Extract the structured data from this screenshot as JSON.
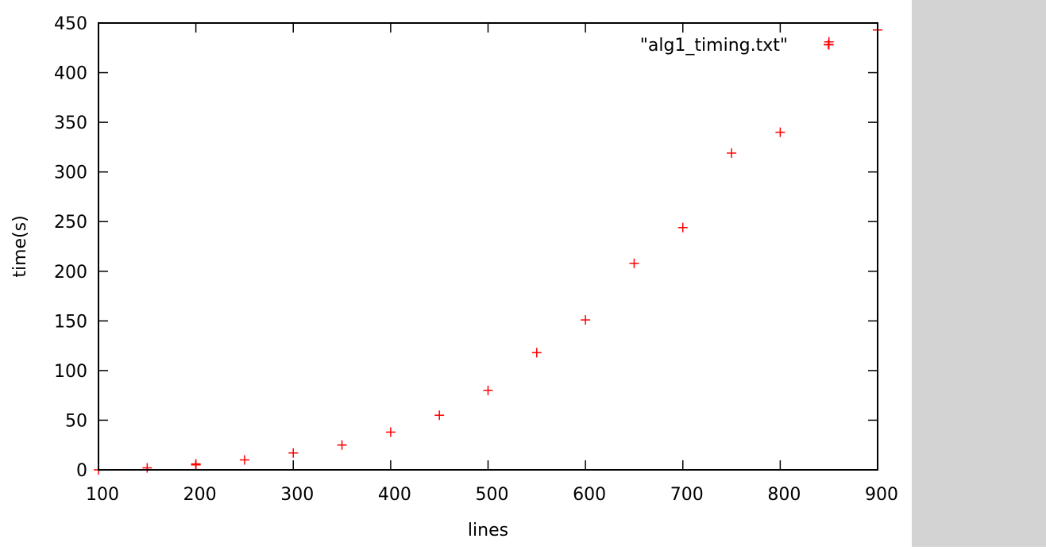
{
  "chart_data": {
    "type": "scatter",
    "xlabel": "lines",
    "ylabel": "time(s)",
    "xlim": [
      100,
      900
    ],
    "ylim": [
      0,
      450
    ],
    "xticks": [
      100,
      200,
      300,
      400,
      500,
      600,
      700,
      800,
      900
    ],
    "yticks": [
      0,
      50,
      100,
      150,
      200,
      250,
      300,
      350,
      400,
      450
    ],
    "grid": false,
    "legend_position": "top-right",
    "series": [
      {
        "name": "\"alg1_timing.txt\"",
        "color": "#ff0000",
        "marker": "plus",
        "x": [
          100,
          150,
          200,
          200,
          250,
          300,
          350,
          400,
          450,
          500,
          550,
          600,
          650,
          700,
          750,
          800,
          850,
          850,
          900
        ],
        "y": [
          0,
          2,
          5,
          6,
          10,
          17,
          25,
          38,
          55,
          80,
          118,
          151,
          208,
          244,
          319,
          340,
          428,
          431,
          443
        ]
      }
    ]
  },
  "side_panel": {
    "color": "#d3d3d3"
  }
}
